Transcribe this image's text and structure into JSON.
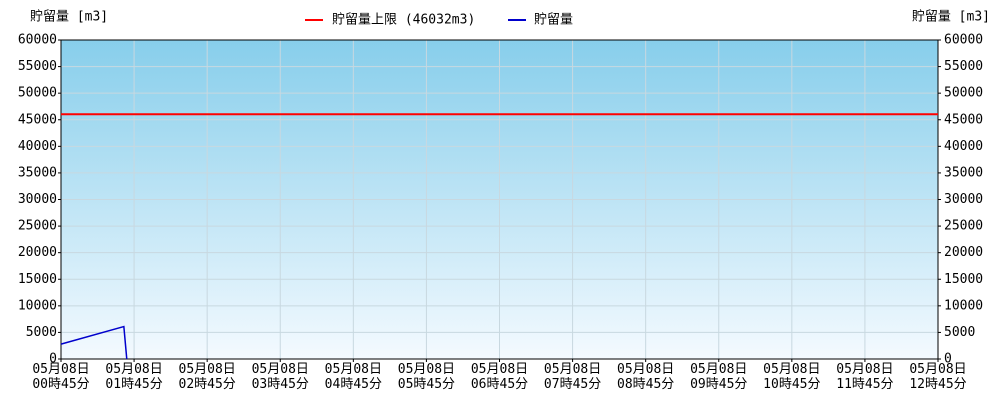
{
  "chart_data": {
    "type": "line",
    "y_label": "貯留量 [m3]",
    "y2_label": "貯留量 [m3]",
    "limit": {
      "name": "貯留量上限 (46032m3)",
      "value": 46032,
      "color": "#ff0000"
    },
    "series": [
      {
        "name": "貯留量",
        "color": "#0000cc",
        "x": [
          0,
          0.86,
          0.9
        ],
        "values": [
          2800,
          6100,
          0
        ]
      }
    ],
    "xlim": [
      0,
      12
    ],
    "xticks": [
      {
        "value": 0,
        "label": "05月08日\n00時45分"
      },
      {
        "value": 1,
        "label": "05月08日\n01時45分"
      },
      {
        "value": 2,
        "label": "05月08日\n02時45分"
      },
      {
        "value": 3,
        "label": "05月08日\n03時45分"
      },
      {
        "value": 4,
        "label": "05月08日\n04時45分"
      },
      {
        "value": 5,
        "label": "05月08日\n05時45分"
      },
      {
        "value": 6,
        "label": "05月08日\n06時45分"
      },
      {
        "value": 7,
        "label": "05月08日\n07時45分"
      },
      {
        "value": 8,
        "label": "05月08日\n08時45分"
      },
      {
        "value": 9,
        "label": "05月08日\n09時45分"
      },
      {
        "value": 10,
        "label": "05月08日\n10時45分"
      },
      {
        "value": 11,
        "label": "05月08日\n11時45分"
      },
      {
        "value": 12,
        "label": "05月08日\n12時45分"
      }
    ],
    "ylim": [
      0,
      60000
    ],
    "yticks": [
      0,
      5000,
      10000,
      15000,
      20000,
      25000,
      30000,
      35000,
      40000,
      45000,
      50000,
      55000,
      60000
    ],
    "y2lim": [
      0,
      60000
    ],
    "y2ticks": [
      0,
      5000,
      10000,
      15000,
      20000,
      25000,
      30000,
      35000,
      40000,
      45000,
      50000,
      55000,
      60000
    ],
    "grid": true
  }
}
